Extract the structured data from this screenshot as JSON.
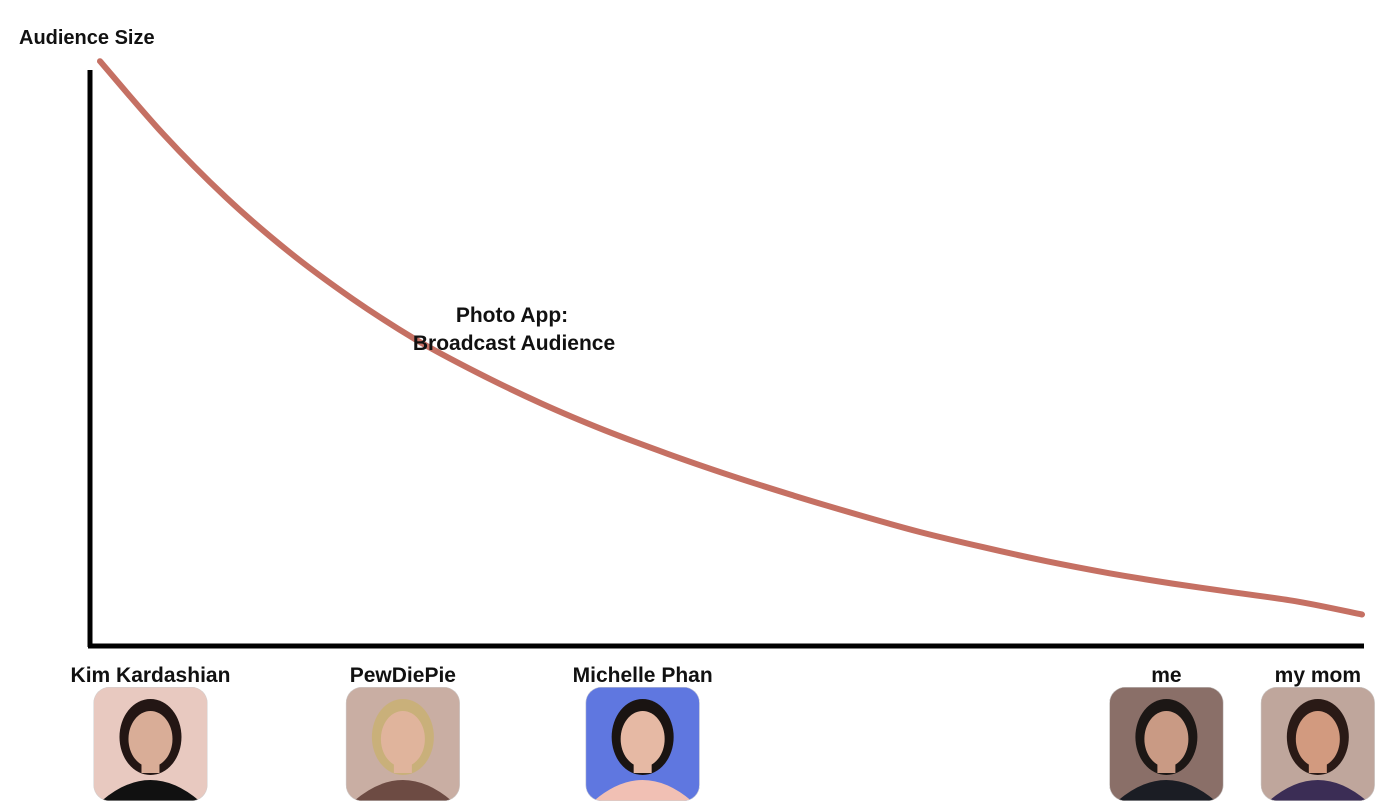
{
  "chart_data": {
    "type": "line",
    "title": "",
    "ylabel": "Audience Size",
    "xlabel": "",
    "annotation": [
      "Photo App:",
      "Broadcast Audience"
    ],
    "x": [
      0,
      5,
      10,
      15,
      20,
      25,
      30,
      35,
      40,
      45,
      50,
      55,
      60,
      65,
      70,
      75,
      80,
      85,
      90,
      95,
      100
    ],
    "y": [
      96.5,
      84.5,
      74.0,
      65.0,
      57.3,
      50.6,
      45.0,
      40.0,
      35.6,
      31.7,
      28.1,
      24.8,
      21.7,
      18.8,
      16.3,
      14.0,
      12.0,
      10.3,
      8.8,
      7.3,
      5.2
    ],
    "xlim": [
      0,
      100
    ],
    "ylim": [
      0,
      100
    ],
    "grid": false,
    "legend": "none",
    "line_color": "#c57063",
    "categories": [
      {
        "label": "Kim Kardashian",
        "x": 4,
        "photo": "kim-kardashian-photo",
        "palette": {
          "bg": "#e8c9c0",
          "hair": "#231614",
          "skin": "#d9ad97",
          "shirt": "#111111"
        }
      },
      {
        "label": "PewDiePie",
        "x": 24,
        "photo": "pewdiepie-photo",
        "palette": {
          "bg": "#c9aea3",
          "hair": "#c9b07a",
          "skin": "#e0b49c",
          "shirt": "#6d4b43"
        }
      },
      {
        "label": "Michelle Phan",
        "x": 43,
        "photo": "michelle-phan-photo",
        "palette": {
          "bg": "#5f77e0",
          "hair": "#1a1412",
          "skin": "#e6b9a4",
          "shirt": "#f1c0b4"
        }
      },
      {
        "label": "me",
        "x": 84.5,
        "photo": "me-photo",
        "palette": {
          "bg": "#8a6f68",
          "hair": "#1c1715",
          "skin": "#c99a84",
          "shirt": "#1b1d24"
        }
      },
      {
        "label": "my mom",
        "x": 96.5,
        "photo": "my-mom-photo",
        "palette": {
          "bg": "#bfa69c",
          "hair": "#2a1a16",
          "skin": "#d29a7f",
          "shirt": "#3b2d55"
        }
      }
    ]
  }
}
